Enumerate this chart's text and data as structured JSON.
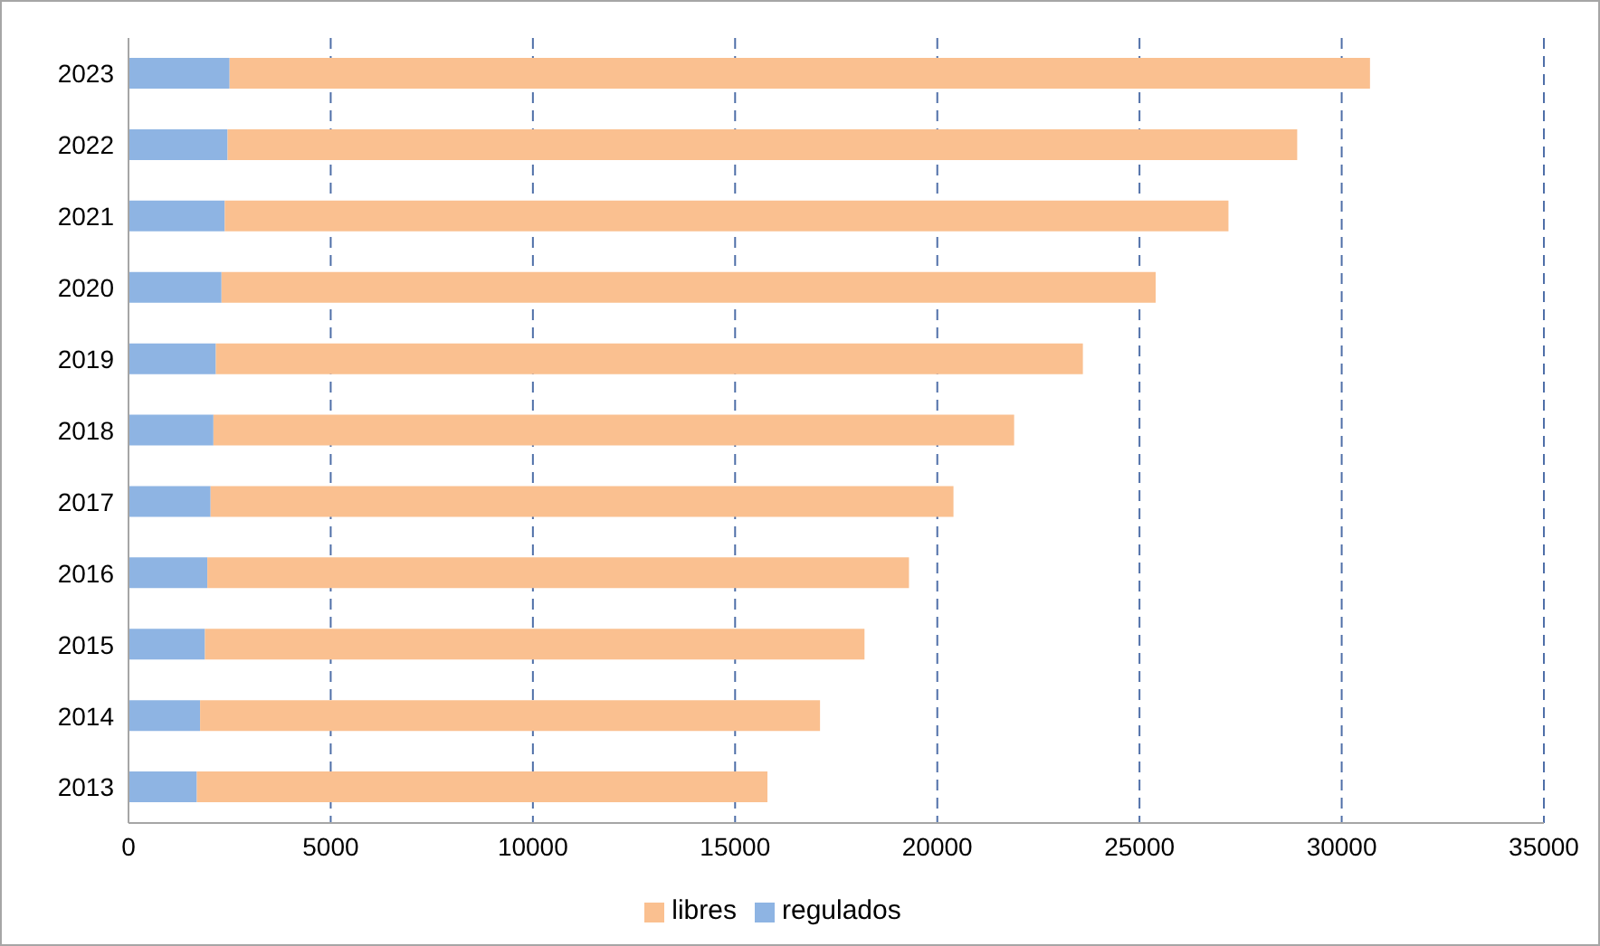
{
  "chart_data": {
    "type": "bar",
    "orientation": "horizontal",
    "stacked": true,
    "categories": [
      "2023",
      "2022",
      "2021",
      "2020",
      "2019",
      "2018",
      "2017",
      "2016",
      "2015",
      "2014",
      "2013"
    ],
    "series": [
      {
        "name": "regulados",
        "color": "#8eb4e3",
        "values": [
          2500,
          2450,
          2380,
          2300,
          2160,
          2100,
          2030,
          1950,
          1890,
          1770,
          1690
        ]
      },
      {
        "name": "libres",
        "color": "#fac090",
        "values": [
          28200,
          26450,
          24820,
          23100,
          21440,
          19800,
          18370,
          17350,
          16310,
          15330,
          14110
        ]
      }
    ],
    "xlim": [
      0,
      35000
    ],
    "xticks": [
      0,
      5000,
      10000,
      15000,
      20000,
      25000,
      30000,
      35000
    ],
    "grid": "x",
    "legend": "bottom"
  }
}
